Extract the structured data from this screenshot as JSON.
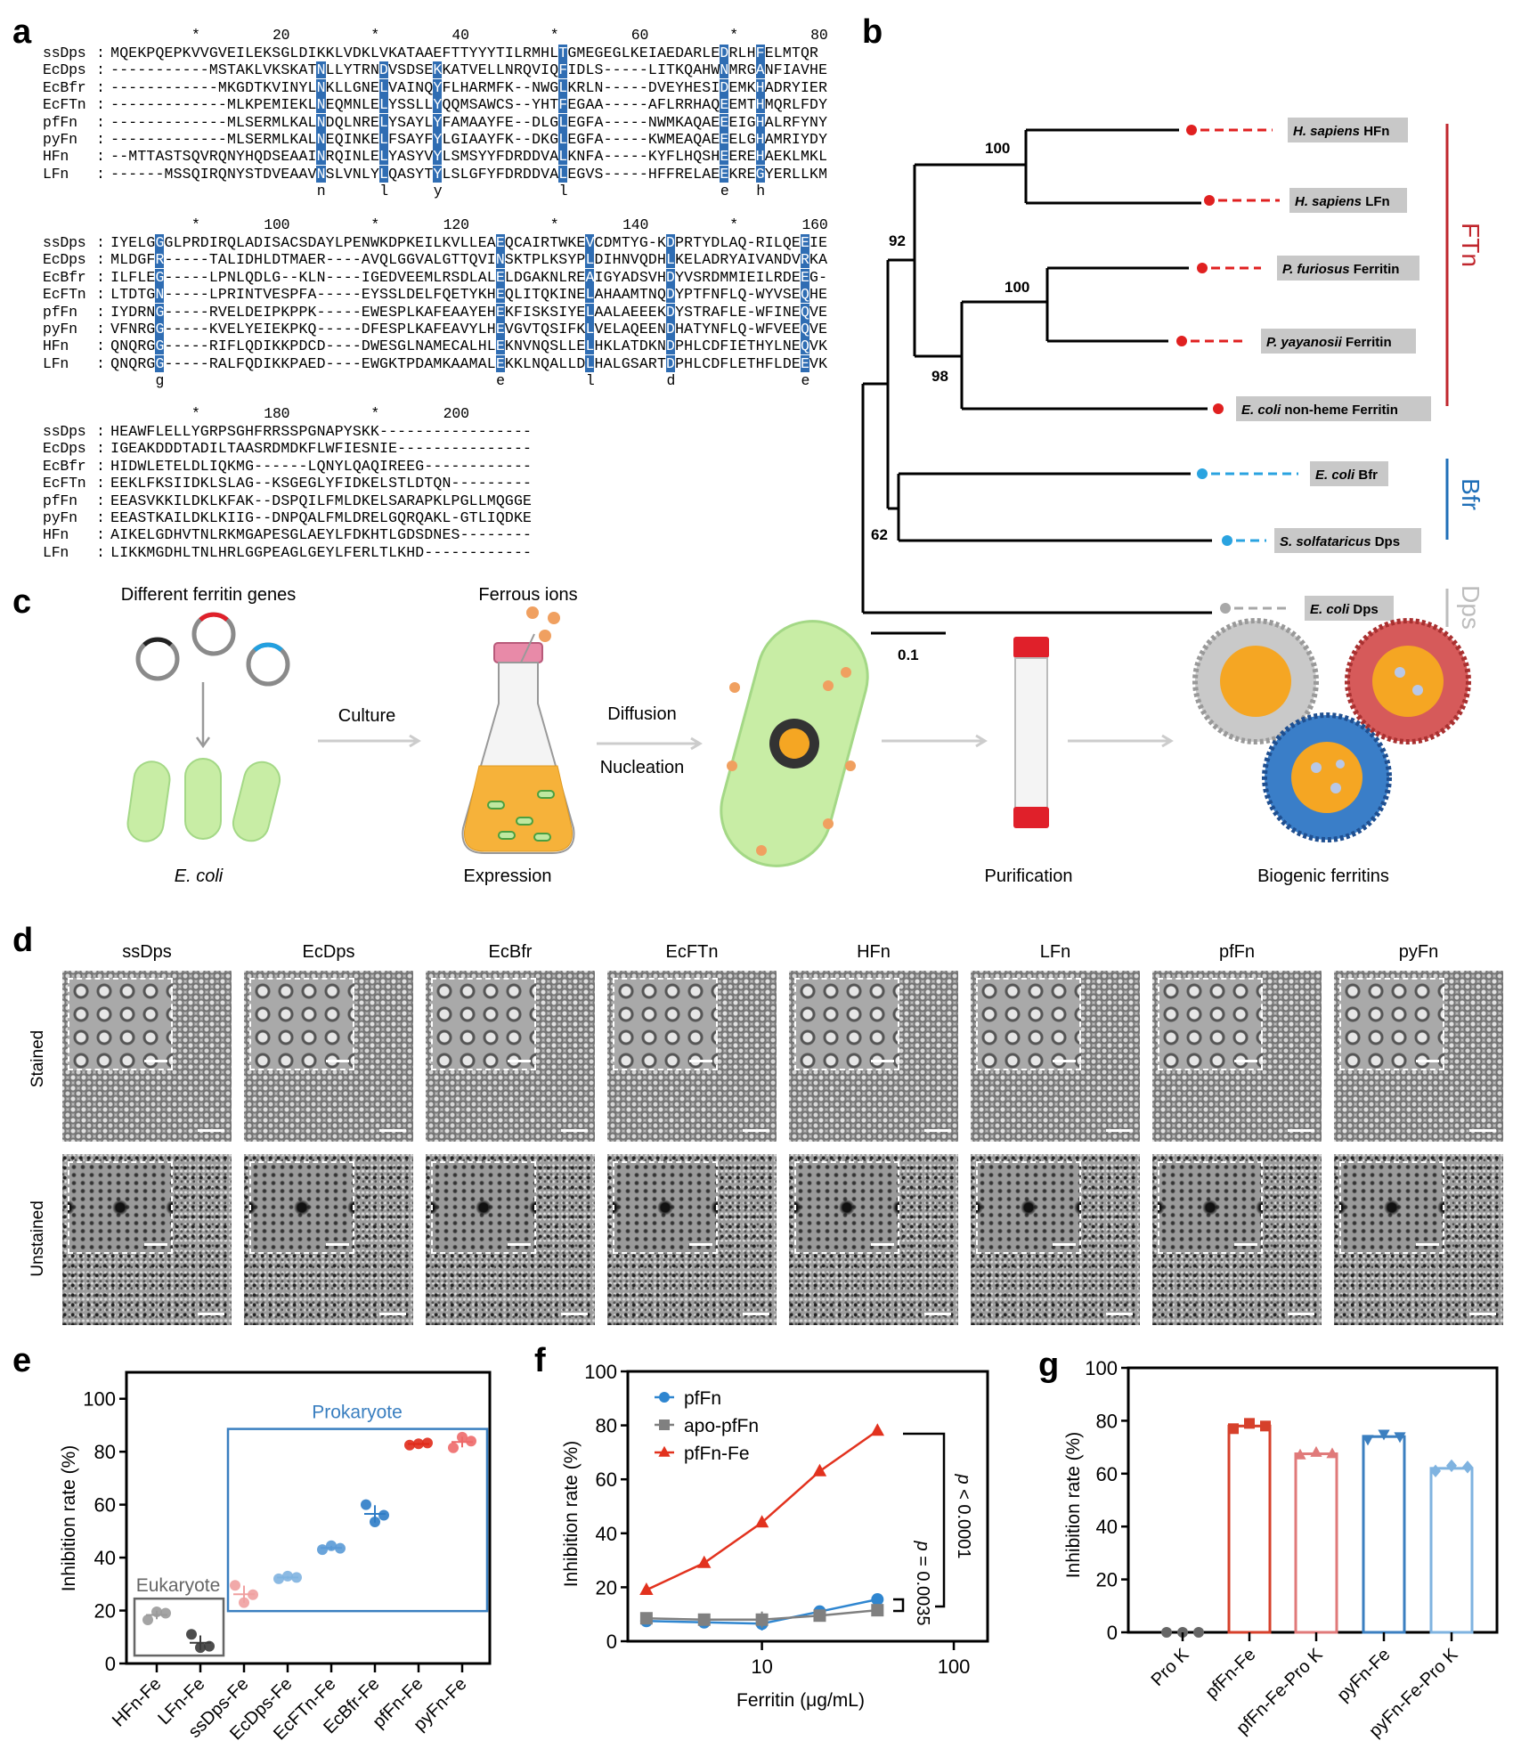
{
  "panel_labels": {
    "a": "a",
    "b": "b",
    "c": "c",
    "d": "d",
    "e": "e",
    "f": "f",
    "g": "g"
  },
  "alignment": {
    "highlight_color": "#2f6db3",
    "blocks": [
      {
        "start": 1,
        "ruler": [
          {
            "label": "*",
            "pos": 10
          },
          {
            "label": "20",
            "pos": 20
          },
          {
            "label": "*",
            "pos": 30
          },
          {
            "label": "40",
            "pos": 40
          },
          {
            "label": "*",
            "pos": 50
          },
          {
            "label": "60",
            "pos": 60
          },
          {
            "label": "*",
            "pos": 70
          },
          {
            "label": "80",
            "pos": 80
          }
        ],
        "blue_positions": [
          24,
          31,
          37,
          51,
          69,
          73
        ],
        "rows": [
          {
            "name": "ssDps",
            "seq": "MQEKPQEPKVVGVEILEKSGLDIKKLVDKLVKATAAEFTTYYYTILRMHLTGMEGEGLKEIAEDARLEDRLHFELMTQR"
          },
          {
            "name": "EcDps",
            "seq": "-----------MSTAKLVKSKATNLLYTRNDVSDSEKKATVELLNRQVIQFIDLS-----LITKQAHWNMRGANFIAVHE"
          },
          {
            "name": "EcBfr",
            "seq": "------------MKGDTKVINYLNKLLGNELVAINQYFLHARMFK--NWGLKRLN-----DVEYHESIDEMKHADRYIER"
          },
          {
            "name": "EcFTn",
            "seq": "-------------MLKPEMIEKLNEQMNLELYSSLLYQQMSAWCS--YHTFEGAA-----AFLRRHAQEEMTHMQRLFDY"
          },
          {
            "name": "pfFn",
            "seq": "-------------MLSERMLKALNDQLNRELYSAYLYFAMAAYFE--DLGLEGFA-----NWMKAQAEEEIGHALRFYNY"
          },
          {
            "name": "pyFn",
            "seq": "-------------MLSERMLKALNEQINKELFSAYFYLGIAAYFK--DKGLEGFA-----KWMEAQAEEELGHAMRIYDY"
          },
          {
            "name": "HFn",
            "seq": "--MTTASTSQVRQNYHQDSEAAINRQINLELYASYVYLSMSYYFDRDDVALKNFA-----KYFLHQSHEEREHAEKLMKL"
          },
          {
            "name": "LFn",
            "seq": "------MSSQIRQNYSTDVEAAVNSLVNLYLQASYTYLSLGFYFDRDDVALEGVS-----HFFRELAEEKREGYERLLKM"
          }
        ],
        "consensus": [
          {
            "pos": 24,
            "letter": "n"
          },
          {
            "pos": 31,
            "letter": "l"
          },
          {
            "pos": 37,
            "letter": "y"
          },
          {
            "pos": 51,
            "letter": "l"
          },
          {
            "pos": 69,
            "letter": "e"
          },
          {
            "pos": 73,
            "letter": "h"
          }
        ]
      },
      {
        "start": 81,
        "ruler": [
          {
            "label": "*",
            "pos": 90
          },
          {
            "label": "100",
            "pos": 100
          },
          {
            "label": "*",
            "pos": 110
          },
          {
            "label": "120",
            "pos": 120
          },
          {
            "label": "*",
            "pos": 130
          },
          {
            "label": "140",
            "pos": 140
          },
          {
            "label": "*",
            "pos": 150
          },
          {
            "label": "160",
            "pos": 160
          }
        ],
        "blue_positions": [
          86,
          124,
          134,
          143,
          158
        ],
        "rows": [
          {
            "name": "ssDps",
            "seq": "IYELGGGLPRDIRQLADISACSDAYLPENWKDPKEILKVLLEAEQCAIRTWKEVCDMTYG-KDPRTYDLAQ-RILQEEIE"
          },
          {
            "name": "EcDps",
            "seq": "MLDGFR-----TALIDHLDTMAER----AVQLGGVALGTTQVINSKTPLKSYPLDIHNVQDHLKELADRYAIVANDVRKA"
          },
          {
            "name": "EcBfr",
            "seq": "ILFLEG-----LPNLQDLG--KLN----IGEDVEEMLRSDLALELDGAKNLREAIGYADSVHDYVSRDMMIEILRDEEG-"
          },
          {
            "name": "EcFTn",
            "seq": "LTDTGN-----LPRINTVESPFA-----EYSSLDELFQETYKHEQLITQKINELAHAAMTNQDYPTFNFLQ-WYVSEQHE"
          },
          {
            "name": "pfFn",
            "seq": "IYDRNG-----RVELDEIPKPPK-----EWESPLKAFEAAYEHEKFISKSIYELAALAEEEKDYSTRAFLE-WFINEQVE"
          },
          {
            "name": "pyFn",
            "seq": "VFNRGG-----KVELYEIEKPKQ-----DFESPLKAFEAVYLHEVGVTQSIFKLVELAQEENDHATYNFLQ-WFVEEQVE"
          },
          {
            "name": "HFn",
            "seq": "QNQRGG-----RIFLQDIKKPDCD----DWESGLNAMECALHLEKNVNQSLLELHKLATDKNDPHLCDFIETHYLNEQVK"
          },
          {
            "name": "LFn",
            "seq": "QNQRGG-----RALFQDIKKPAED----EWGKTPDAMKAAMALEKKLNQALLDLHALGSARTDPHLCDFLETHFLDEEVK"
          }
        ],
        "consensus": [
          {
            "pos": 86,
            "letter": "g"
          },
          {
            "pos": 124,
            "letter": "e"
          },
          {
            "pos": 134,
            "letter": "l"
          },
          {
            "pos": 143,
            "letter": "d"
          },
          {
            "pos": 158,
            "letter": "e"
          }
        ]
      },
      {
        "start": 161,
        "ruler": [
          {
            "label": "*",
            "pos": 170
          },
          {
            "label": "180",
            "pos": 180
          },
          {
            "label": "*",
            "pos": 190
          },
          {
            "label": "200",
            "pos": 200
          }
        ],
        "blue_positions": [],
        "rows": [
          {
            "name": "ssDps",
            "seq": "HEAWFLELLYGRPSGHFRRSSPGNAPYSKK-----------------"
          },
          {
            "name": "EcDps",
            "seq": "IGEAKDDDTADILTAASRDMDKFLWFIESNIE---------------"
          },
          {
            "name": "EcBfr",
            "seq": "HIDWLETELDLIQKMG------LQNYLQAQIREEG------------"
          },
          {
            "name": "EcFTn",
            "seq": "EEKLFKSIIDKLSLAG--KSGEGLYFIDKELSTLDTQN---------"
          },
          {
            "name": "pfFn",
            "seq": "EEASVKKILDKLKFAK--DSPQILFMLDKELSARAPKLPGLLMQGGE"
          },
          {
            "name": "pyFn",
            "seq": "EEASTKAILDKLKIIG--DNPQALFMLDRELGQRQAKL-GTLIQDKE"
          },
          {
            "name": "HFn",
            "seq": "AIKELGDHVTNLRKMGAPESGLAEYLFDKHTLGDSDNES--------"
          },
          {
            "name": "LFn",
            "seq": "LIKKMGDHLTNLHRLGGPEAGLGEYLFERLTLKHD------------"
          }
        ],
        "consensus": []
      }
    ]
  },
  "tree": {
    "bootstrap": [
      "100",
      "92",
      "100",
      "98",
      "62"
    ],
    "scale_label": "0.1",
    "leaves": [
      {
        "italic": "H. sapiens",
        "rest": " HFn",
        "group": "FTn"
      },
      {
        "italic": "H. sapiens",
        "rest": " LFn",
        "group": "FTn"
      },
      {
        "italic": "P. furiosus",
        "rest": " Ferritin",
        "group": "FTn"
      },
      {
        "italic": "P. yayanosii",
        "rest": " Ferritin",
        "group": "FTn"
      },
      {
        "italic": "E. coli",
        "rest": " non-heme Ferritin",
        "group": "FTn"
      },
      {
        "italic": "E. coli",
        "rest": " Bfr",
        "group": "Bfr"
      },
      {
        "italic": "S. solfataricus",
        "rest": " Dps",
        "group": "Bfr"
      },
      {
        "italic": "E. coli",
        "rest": " Dps",
        "group": "Dps"
      }
    ],
    "groups": [
      {
        "name": "FTn",
        "color": "#c0262d"
      },
      {
        "name": "Bfr",
        "color": "#1f6fb8"
      },
      {
        "name": "Dps",
        "color": "#bdbdbd"
      }
    ],
    "leaf_colors": {
      "FTn": "#e02020",
      "Bfr": "#2aa3e0",
      "Dps": "#a8a8a8"
    }
  },
  "schematic": {
    "genes_label": "Different ferritin genes",
    "ecoli_label": "E. coli",
    "culture_label": "Culture",
    "ions_label": "Ferrous ions",
    "expression_label": "Expression",
    "diffusion_label": "Diffusion",
    "nucleation_label": "Nucleation",
    "purification_label": "Purification",
    "biogenic_label": "Biogenic ferritins"
  },
  "micrographs": {
    "columns": [
      "ssDps",
      "EcDps",
      "EcBfr",
      "EcFTn",
      "HFn",
      "LFn",
      "pfFn",
      "pyFn"
    ],
    "rows": [
      "Stained",
      "Unstained"
    ]
  },
  "chart_data": [
    {
      "panel": "e",
      "type": "scatter",
      "ylabel": "Inhibition rate (%)",
      "ylim": [
        0,
        110
      ],
      "yticks": [
        0,
        20,
        40,
        60,
        80,
        100
      ],
      "categories": [
        "HFn-Fe",
        "LFn-Fe",
        "ssDps-Fe",
        "EcDps-Fe",
        "EcFTn-Fe",
        "EcBfr-Fe",
        "pfFn-Fe",
        "pyFn-Fe"
      ],
      "replicates": [
        [
          16.5,
          19.5,
          19
        ],
        [
          11,
          6,
          6.5
        ],
        [
          29.5,
          23,
          26
        ],
        [
          32,
          33,
          32.5
        ],
        [
          43,
          44.5,
          43.5
        ],
        [
          60,
          53.5,
          56
        ],
        [
          82.5,
          83,
          83.3
        ],
        [
          81.5,
          85.5,
          84
        ]
      ],
      "colors": [
        "#9a9a9a",
        "#3a3a3a",
        "#f0a0a0",
        "#7fb3e0",
        "#5a9ad6",
        "#2e7cc6",
        "#e02a1a",
        "#ee6a6a"
      ],
      "annotations": [
        {
          "text": "Eukaryote",
          "color": "#666666",
          "categories": [
            0,
            1
          ],
          "yrange": [
            3,
            24.5
          ]
        },
        {
          "text": "Prokaryote",
          "color": "#3a7fc0",
          "categories": [
            2,
            7
          ],
          "yrange": [
            19.8,
            88.6
          ]
        }
      ]
    },
    {
      "panel": "f",
      "type": "line",
      "xlabel": "Ferritin (μg/mL)",
      "ylabel": "Inhibition rate (%)",
      "xscale": "log",
      "xlim": [
        2,
        150
      ],
      "ylim": [
        0,
        100
      ],
      "xticks": [
        10,
        100
      ],
      "yticks": [
        0,
        20,
        40,
        60,
        80,
        100
      ],
      "x": [
        2.5,
        5,
        10,
        20,
        40
      ],
      "series": [
        {
          "name": "pfFn",
          "marker": "circle",
          "color": "#2f86d0",
          "values": [
            7.5,
            7,
            6.5,
            11,
            15.5
          ],
          "errors": [
            1,
            2,
            2.5,
            0.5,
            0.5
          ]
        },
        {
          "name": "apo-pfFn",
          "marker": "square",
          "color": "#808080",
          "values": [
            8.5,
            8,
            8,
            9.5,
            11.5
          ],
          "errors": [
            0.5,
            1,
            3,
            0.5,
            1
          ]
        },
        {
          "name": "pfFn-Fe",
          "marker": "triangle",
          "color": "#e2321e",
          "values": [
            19,
            29,
            44,
            63,
            78
          ],
          "errors": [
            0.5,
            0.5,
            0.5,
            0.5,
            0.5
          ]
        }
      ],
      "legend": "top-left",
      "significance": [
        {
          "text_p": "p",
          "text_rest": " < 0.0001"
        },
        {
          "text_p": "p",
          "text_rest": " = 0.0035"
        }
      ]
    },
    {
      "panel": "g",
      "type": "bar",
      "ylabel": "Inhibition rate (%)",
      "ylim": [
        0,
        100
      ],
      "yticks": [
        0,
        20,
        40,
        60,
        80,
        100
      ],
      "categories": [
        "Pro K",
        "pfFn-Fe",
        "pfFn-Fe-Pro K",
        "pyFn-Fe",
        "pyFn-Fe-Pro K"
      ],
      "values": [
        0,
        78,
        67.5,
        74,
        62
      ],
      "replicates": [
        [
          0,
          0,
          0
        ],
        [
          77,
          79,
          78
        ],
        [
          67,
          68,
          67.5
        ],
        [
          73,
          75,
          74
        ],
        [
          61,
          63,
          62.5
        ]
      ],
      "markers": [
        "circle",
        "square",
        "triangle",
        "triangle-down",
        "diamond"
      ],
      "colors": [
        "#666666",
        "#d6402b",
        "#e07a7a",
        "#3b7fc0",
        "#7fb3e0"
      ]
    }
  ]
}
